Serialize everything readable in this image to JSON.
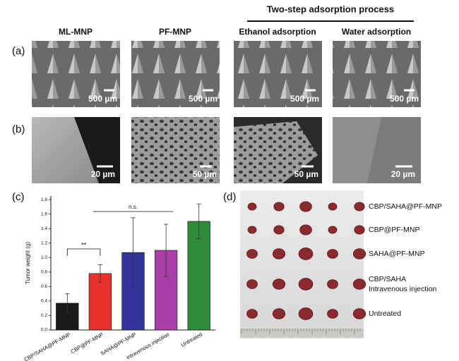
{
  "header": {
    "title": "Two-step adsorption process"
  },
  "panels": {
    "a": {
      "label": "(a)",
      "columns": [
        "ML-MNP",
        "PF-MNP",
        "Ethanol adsorption",
        "Water adsorption"
      ],
      "scale_bars": [
        "500 µm",
        "500 µm",
        "500 µm",
        "500 µm"
      ]
    },
    "b": {
      "label": "(b)",
      "scale_bars": [
        "20 µm",
        "50 µm",
        "50 µm",
        "20 µm"
      ]
    },
    "c": {
      "label": "(c)"
    },
    "d": {
      "label": "(d)",
      "rows": [
        "CBP/SAHA@PF-MNP",
        "CBP@PF-MNP",
        "SAHA@PF-MNP",
        [
          "CBP/SAHA",
          "Intravenous injection"
        ],
        "Untreated"
      ]
    }
  },
  "chart_data": {
    "type": "bar",
    "y_label": "Tumor weight (g)",
    "categories": [
      "CBP/SAHA@PF-MNP",
      "CBP@PF-MNP",
      "SAHA@PF-MNP",
      "intravenous injection",
      "Untreated"
    ],
    "values": [
      0.37,
      0.78,
      1.07,
      1.1,
      1.5
    ],
    "errors": [
      0.13,
      0.12,
      0.48,
      0.36,
      0.24
    ],
    "colors": [
      "#1a1a1a",
      "#e8302c",
      "#33339c",
      "#a83ea8",
      "#2e8b3a"
    ],
    "ylim": [
      0,
      1.85
    ],
    "yticks": [
      {
        "value": 0,
        "label": "0.0"
      },
      0.2,
      0.4,
      0.6,
      0.8,
      {
        "value": 1,
        "label": "1.0"
      },
      1.2,
      1.4,
      1.6,
      1.8
    ],
    "annotations": [
      "**",
      "n.s."
    ]
  }
}
